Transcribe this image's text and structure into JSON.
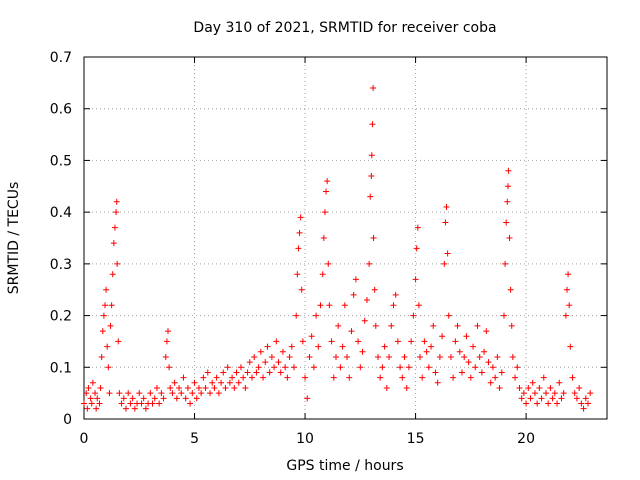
{
  "chart_data": {
    "type": "scatter",
    "title": "Day 310 of 2021, SRMTID for receiver coba",
    "xlabel": "GPS time / hours",
    "ylabel": "SRMTID / TECUs",
    "xlim": [
      0,
      23.66
    ],
    "ylim": [
      0,
      0.7
    ],
    "xticks": [
      0,
      5,
      10,
      15,
      20
    ],
    "xtick_labels": [
      "0",
      "5",
      "10",
      "15",
      "20"
    ],
    "yticks": [
      0,
      0.1,
      0.2,
      0.3,
      0.4,
      0.5,
      0.6,
      0.7
    ],
    "ytick_labels": [
      "0",
      "0.1",
      "0.2",
      "0.3",
      "0.4",
      "0.5",
      "0.6",
      "0.7"
    ],
    "grid": true,
    "marker": "+",
    "color": "#ff0000",
    "series": [
      {
        "name": "SRMTID",
        "points": [
          [
            0.0,
            0.03
          ],
          [
            0.1,
            0.05
          ],
          [
            0.15,
            0.02
          ],
          [
            0.2,
            0.06
          ],
          [
            0.3,
            0.04
          ],
          [
            0.35,
            0.03
          ],
          [
            0.4,
            0.07
          ],
          [
            0.5,
            0.05
          ],
          [
            0.55,
            0.02
          ],
          [
            0.6,
            0.04
          ],
          [
            0.7,
            0.03
          ],
          [
            0.75,
            0.06
          ],
          [
            0.8,
            0.12
          ],
          [
            0.85,
            0.17
          ],
          [
            0.9,
            0.2
          ],
          [
            0.95,
            0.22
          ],
          [
            1.0,
            0.25
          ],
          [
            1.05,
            0.14
          ],
          [
            1.1,
            0.1
          ],
          [
            1.15,
            0.05
          ],
          [
            1.2,
            0.18
          ],
          [
            1.25,
            0.22
          ],
          [
            1.3,
            0.28
          ],
          [
            1.35,
            0.34
          ],
          [
            1.4,
            0.37
          ],
          [
            1.45,
            0.4
          ],
          [
            1.48,
            0.42
          ],
          [
            1.5,
            0.3
          ],
          [
            1.55,
            0.15
          ],
          [
            1.6,
            0.05
          ],
          [
            1.7,
            0.03
          ],
          [
            1.8,
            0.04
          ],
          [
            1.9,
            0.02
          ],
          [
            2.0,
            0.05
          ],
          [
            2.1,
            0.03
          ],
          [
            2.2,
            0.04
          ],
          [
            2.3,
            0.02
          ],
          [
            2.4,
            0.03
          ],
          [
            2.5,
            0.05
          ],
          [
            2.6,
            0.03
          ],
          [
            2.7,
            0.04
          ],
          [
            2.8,
            0.02
          ],
          [
            2.9,
            0.03
          ],
          [
            3.0,
            0.05
          ],
          [
            3.1,
            0.03
          ],
          [
            3.2,
            0.04
          ],
          [
            3.3,
            0.06
          ],
          [
            3.4,
            0.03
          ],
          [
            3.5,
            0.05
          ],
          [
            3.6,
            0.04
          ],
          [
            3.7,
            0.12
          ],
          [
            3.75,
            0.15
          ],
          [
            3.8,
            0.17
          ],
          [
            3.85,
            0.1
          ],
          [
            3.9,
            0.06
          ],
          [
            4.0,
            0.05
          ],
          [
            4.1,
            0.07
          ],
          [
            4.2,
            0.04
          ],
          [
            4.3,
            0.06
          ],
          [
            4.4,
            0.05
          ],
          [
            4.5,
            0.08
          ],
          [
            4.6,
            0.04
          ],
          [
            4.7,
            0.06
          ],
          [
            4.8,
            0.03
          ],
          [
            4.9,
            0.05
          ],
          [
            5.0,
            0.07
          ],
          [
            5.1,
            0.04
          ],
          [
            5.2,
            0.06
          ],
          [
            5.3,
            0.05
          ],
          [
            5.4,
            0.08
          ],
          [
            5.5,
            0.06
          ],
          [
            5.6,
            0.09
          ],
          [
            5.7,
            0.05
          ],
          [
            5.8,
            0.07
          ],
          [
            5.9,
            0.06
          ],
          [
            6.0,
            0.08
          ],
          [
            6.1,
            0.05
          ],
          [
            6.2,
            0.07
          ],
          [
            6.3,
            0.09
          ],
          [
            6.4,
            0.06
          ],
          [
            6.5,
            0.1
          ],
          [
            6.6,
            0.07
          ],
          [
            6.7,
            0.08
          ],
          [
            6.8,
            0.06
          ],
          [
            6.9,
            0.09
          ],
          [
            7.0,
            0.07
          ],
          [
            7.1,
            0.1
          ],
          [
            7.2,
            0.08
          ],
          [
            7.3,
            0.06
          ],
          [
            7.4,
            0.09
          ],
          [
            7.5,
            0.11
          ],
          [
            7.6,
            0.08
          ],
          [
            7.7,
            0.12
          ],
          [
            7.8,
            0.09
          ],
          [
            7.9,
            0.1
          ],
          [
            8.0,
            0.13
          ],
          [
            8.1,
            0.08
          ],
          [
            8.2,
            0.11
          ],
          [
            8.3,
            0.14
          ],
          [
            8.4,
            0.09
          ],
          [
            8.5,
            0.12
          ],
          [
            8.6,
            0.1
          ],
          [
            8.7,
            0.15
          ],
          [
            8.8,
            0.11
          ],
          [
            8.9,
            0.09
          ],
          [
            9.0,
            0.13
          ],
          [
            9.1,
            0.1
          ],
          [
            9.2,
            0.08
          ],
          [
            9.3,
            0.12
          ],
          [
            9.4,
            0.14
          ],
          [
            9.5,
            0.1
          ],
          [
            9.6,
            0.2
          ],
          [
            9.65,
            0.28
          ],
          [
            9.7,
            0.33
          ],
          [
            9.75,
            0.36
          ],
          [
            9.8,
            0.39
          ],
          [
            9.85,
            0.25
          ],
          [
            9.9,
            0.15
          ],
          [
            10.0,
            0.08
          ],
          [
            10.1,
            0.04
          ],
          [
            10.2,
            0.12
          ],
          [
            10.3,
            0.16
          ],
          [
            10.4,
            0.1
          ],
          [
            10.5,
            0.2
          ],
          [
            10.6,
            0.14
          ],
          [
            10.7,
            0.22
          ],
          [
            10.8,
            0.28
          ],
          [
            10.85,
            0.35
          ],
          [
            10.9,
            0.4
          ],
          [
            10.95,
            0.44
          ],
          [
            11.0,
            0.46
          ],
          [
            11.05,
            0.3
          ],
          [
            11.1,
            0.22
          ],
          [
            11.2,
            0.15
          ],
          [
            11.3,
            0.08
          ],
          [
            11.4,
            0.12
          ],
          [
            11.5,
            0.18
          ],
          [
            11.6,
            0.1
          ],
          [
            11.7,
            0.14
          ],
          [
            11.8,
            0.22
          ],
          [
            11.9,
            0.12
          ],
          [
            12.0,
            0.08
          ],
          [
            12.1,
            0.17
          ],
          [
            12.2,
            0.24
          ],
          [
            12.3,
            0.27
          ],
          [
            12.4,
            0.15
          ],
          [
            12.5,
            0.1
          ],
          [
            12.6,
            0.13
          ],
          [
            12.7,
            0.19
          ],
          [
            12.8,
            0.23
          ],
          [
            12.9,
            0.3
          ],
          [
            12.95,
            0.43
          ],
          [
            13.0,
            0.47
          ],
          [
            13.02,
            0.51
          ],
          [
            13.05,
            0.57
          ],
          [
            13.08,
            0.64
          ],
          [
            13.1,
            0.35
          ],
          [
            13.15,
            0.25
          ],
          [
            13.2,
            0.18
          ],
          [
            13.3,
            0.12
          ],
          [
            13.4,
            0.08
          ],
          [
            13.5,
            0.1
          ],
          [
            13.6,
            0.14
          ],
          [
            13.7,
            0.06
          ],
          [
            13.8,
            0.12
          ],
          [
            13.9,
            0.18
          ],
          [
            14.0,
            0.22
          ],
          [
            14.1,
            0.24
          ],
          [
            14.2,
            0.15
          ],
          [
            14.3,
            0.1
          ],
          [
            14.4,
            0.08
          ],
          [
            14.5,
            0.12
          ],
          [
            14.6,
            0.06
          ],
          [
            14.7,
            0.1
          ],
          [
            14.8,
            0.15
          ],
          [
            14.9,
            0.2
          ],
          [
            15.0,
            0.27
          ],
          [
            15.05,
            0.33
          ],
          [
            15.1,
            0.37
          ],
          [
            15.15,
            0.22
          ],
          [
            15.2,
            0.12
          ],
          [
            15.3,
            0.08
          ],
          [
            15.4,
            0.15
          ],
          [
            15.5,
            0.13
          ],
          [
            15.6,
            0.1
          ],
          [
            15.7,
            0.14
          ],
          [
            15.8,
            0.18
          ],
          [
            15.9,
            0.09
          ],
          [
            16.0,
            0.07
          ],
          [
            16.1,
            0.12
          ],
          [
            16.2,
            0.16
          ],
          [
            16.3,
            0.3
          ],
          [
            16.35,
            0.38
          ],
          [
            16.4,
            0.41
          ],
          [
            16.45,
            0.32
          ],
          [
            16.5,
            0.2
          ],
          [
            16.6,
            0.12
          ],
          [
            16.7,
            0.08
          ],
          [
            16.8,
            0.15
          ],
          [
            16.9,
            0.18
          ],
          [
            17.0,
            0.13
          ],
          [
            17.1,
            0.09
          ],
          [
            17.2,
            0.12
          ],
          [
            17.3,
            0.16
          ],
          [
            17.4,
            0.11
          ],
          [
            17.5,
            0.08
          ],
          [
            17.6,
            0.14
          ],
          [
            17.7,
            0.1
          ],
          [
            17.8,
            0.18
          ],
          [
            17.9,
            0.12
          ],
          [
            18.0,
            0.09
          ],
          [
            18.1,
            0.13
          ],
          [
            18.2,
            0.17
          ],
          [
            18.3,
            0.11
          ],
          [
            18.4,
            0.07
          ],
          [
            18.5,
            0.1
          ],
          [
            18.6,
            0.08
          ],
          [
            18.7,
            0.12
          ],
          [
            18.8,
            0.06
          ],
          [
            18.9,
            0.09
          ],
          [
            19.0,
            0.2
          ],
          [
            19.05,
            0.3
          ],
          [
            19.1,
            0.38
          ],
          [
            19.15,
            0.42
          ],
          [
            19.18,
            0.45
          ],
          [
            19.2,
            0.48
          ],
          [
            19.25,
            0.35
          ],
          [
            19.3,
            0.25
          ],
          [
            19.35,
            0.18
          ],
          [
            19.4,
            0.12
          ],
          [
            19.5,
            0.08
          ],
          [
            19.6,
            0.1
          ],
          [
            19.7,
            0.06
          ],
          [
            19.8,
            0.04
          ],
          [
            19.9,
            0.05
          ],
          [
            20.0,
            0.03
          ],
          [
            20.1,
            0.06
          ],
          [
            20.2,
            0.04
          ],
          [
            20.3,
            0.07
          ],
          [
            20.4,
            0.05
          ],
          [
            20.5,
            0.03
          ],
          [
            20.6,
            0.06
          ],
          [
            20.7,
            0.04
          ],
          [
            20.8,
            0.08
          ],
          [
            20.9,
            0.05
          ],
          [
            21.0,
            0.03
          ],
          [
            21.1,
            0.06
          ],
          [
            21.2,
            0.04
          ],
          [
            21.3,
            0.05
          ],
          [
            21.4,
            0.03
          ],
          [
            21.5,
            0.07
          ],
          [
            21.6,
            0.04
          ],
          [
            21.7,
            0.05
          ],
          [
            21.8,
            0.2
          ],
          [
            21.85,
            0.25
          ],
          [
            21.9,
            0.28
          ],
          [
            21.95,
            0.22
          ],
          [
            22.0,
            0.14
          ],
          [
            22.1,
            0.08
          ],
          [
            22.2,
            0.05
          ],
          [
            22.3,
            0.04
          ],
          [
            22.4,
            0.06
          ],
          [
            22.5,
            0.03
          ],
          [
            22.6,
            0.02
          ],
          [
            22.7,
            0.04
          ],
          [
            22.8,
            0.03
          ],
          [
            22.9,
            0.05
          ]
        ]
      }
    ]
  }
}
